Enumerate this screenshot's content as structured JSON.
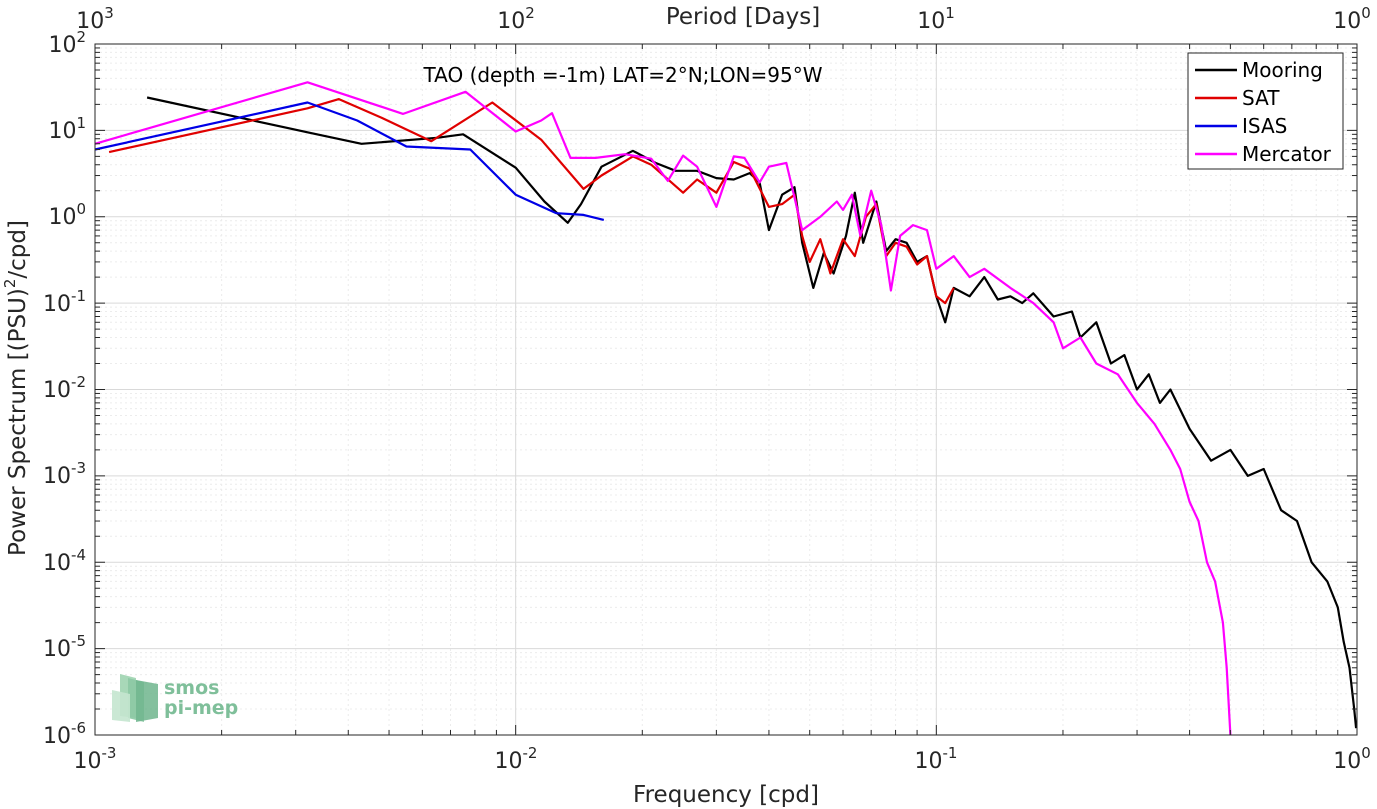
{
  "chart_data": {
    "type": "line",
    "title": "TAO (depth =-1m) LAT=2°N;LON=95°W",
    "xlabel": "Frequency [cpd]",
    "ylabel": "Power Spectrum [(PSU)",
    "ylabel_sup": "2",
    "ylabel_tail": "/cpd]",
    "top_xlabel": "Period [Days]",
    "xscale": "log",
    "yscale": "log",
    "xlim": [
      0.001,
      1
    ],
    "ylim": [
      1e-06,
      100
    ],
    "grid": true,
    "legend_position": "top-right",
    "x_ticks": [
      {
        "base": "10",
        "exp": "-3",
        "value": 0.001
      },
      {
        "base": "10",
        "exp": "-2",
        "value": 0.01
      },
      {
        "base": "10",
        "exp": "-1",
        "value": 0.1
      },
      {
        "base": "10",
        "exp": "0",
        "value": 1
      }
    ],
    "y_ticks": [
      {
        "base": "10",
        "exp": "2",
        "value": 100
      },
      {
        "base": "10",
        "exp": "1",
        "value": 10
      },
      {
        "base": "10",
        "exp": "0",
        "value": 1
      },
      {
        "base": "10",
        "exp": "-1",
        "value": 0.1
      },
      {
        "base": "10",
        "exp": "-2",
        "value": 0.01
      },
      {
        "base": "10",
        "exp": "-3",
        "value": 0.001
      },
      {
        "base": "10",
        "exp": "-4",
        "value": 0.0001
      },
      {
        "base": "10",
        "exp": "-5",
        "value": 1e-05
      },
      {
        "base": "10",
        "exp": "-6",
        "value": 1e-06
      }
    ],
    "top_ticks": [
      {
        "base": "10",
        "exp": "3",
        "period": 1000
      },
      {
        "base": "10",
        "exp": "2",
        "period": 100
      },
      {
        "base": "10",
        "exp": "1",
        "period": 10
      },
      {
        "base": "10",
        "exp": "0",
        "period": 1
      }
    ],
    "series": [
      {
        "name": "Mooring",
        "color": "#000000",
        "points": [
          [
            0.00133,
            24
          ],
          [
            0.0032,
            9.5
          ],
          [
            0.0043,
            7
          ],
          [
            0.0065,
            8.2
          ],
          [
            0.0075,
            9
          ],
          [
            0.01,
            3.7
          ],
          [
            0.0117,
            1.5
          ],
          [
            0.0133,
            0.85
          ],
          [
            0.0143,
            1.4
          ],
          [
            0.016,
            3.8
          ],
          [
            0.019,
            5.8
          ],
          [
            0.0215,
            4.2
          ],
          [
            0.024,
            3.4
          ],
          [
            0.027,
            3.4
          ],
          [
            0.03,
            2.8
          ],
          [
            0.033,
            2.7
          ],
          [
            0.036,
            3.2
          ],
          [
            0.038,
            2.5
          ],
          [
            0.04,
            0.7
          ],
          [
            0.043,
            1.8
          ],
          [
            0.046,
            2.2
          ],
          [
            0.048,
            0.5
          ],
          [
            0.051,
            0.15
          ],
          [
            0.054,
            0.38
          ],
          [
            0.057,
            0.22
          ],
          [
            0.061,
            0.6
          ],
          [
            0.064,
            1.9
          ],
          [
            0.067,
            0.5
          ],
          [
            0.072,
            1.5
          ],
          [
            0.076,
            0.4
          ],
          [
            0.08,
            0.55
          ],
          [
            0.085,
            0.5
          ],
          [
            0.09,
            0.3
          ],
          [
            0.095,
            0.35
          ],
          [
            0.1,
            0.12
          ],
          [
            0.105,
            0.06
          ],
          [
            0.11,
            0.15
          ],
          [
            0.12,
            0.12
          ],
          [
            0.13,
            0.2
          ],
          [
            0.14,
            0.11
          ],
          [
            0.15,
            0.12
          ],
          [
            0.16,
            0.1
          ],
          [
            0.17,
            0.13
          ],
          [
            0.19,
            0.07
          ],
          [
            0.21,
            0.08
          ],
          [
            0.22,
            0.04
          ],
          [
            0.24,
            0.06
          ],
          [
            0.26,
            0.02
          ],
          [
            0.28,
            0.025
          ],
          [
            0.3,
            0.01
          ],
          [
            0.32,
            0.015
          ],
          [
            0.34,
            0.007
          ],
          [
            0.36,
            0.01
          ],
          [
            0.4,
            0.0035
          ],
          [
            0.45,
            0.0015
          ],
          [
            0.5,
            0.002
          ],
          [
            0.55,
            0.001
          ],
          [
            0.6,
            0.0012
          ],
          [
            0.66,
            0.0004
          ],
          [
            0.72,
            0.0003
          ],
          [
            0.78,
            0.0001
          ],
          [
            0.85,
            6e-05
          ],
          [
            0.9,
            3e-05
          ],
          [
            0.93,
            1.2e-05
          ],
          [
            0.96,
            6e-06
          ],
          [
            0.985,
            2e-06
          ],
          [
            0.995,
            1.2e-06
          ]
        ]
      },
      {
        "name": "SAT",
        "color": "#e00000",
        "points": [
          [
            0.00108,
            5.6
          ],
          [
            0.0032,
            18
          ],
          [
            0.0038,
            23
          ],
          [
            0.0048,
            14
          ],
          [
            0.0063,
            7.5
          ],
          [
            0.0088,
            21
          ],
          [
            0.0115,
            7.8
          ],
          [
            0.0145,
            2.1
          ],
          [
            0.016,
            3
          ],
          [
            0.019,
            5
          ],
          [
            0.021,
            4
          ],
          [
            0.025,
            1.9
          ],
          [
            0.027,
            2.7
          ],
          [
            0.03,
            1.9
          ],
          [
            0.033,
            4.3
          ],
          [
            0.036,
            3.6
          ],
          [
            0.04,
            1.3
          ],
          [
            0.043,
            1.4
          ],
          [
            0.046,
            1.8
          ],
          [
            0.048,
            0.6
          ],
          [
            0.05,
            0.3
          ],
          [
            0.053,
            0.55
          ],
          [
            0.056,
            0.22
          ],
          [
            0.06,
            0.55
          ],
          [
            0.064,
            0.35
          ],
          [
            0.068,
            1
          ],
          [
            0.072,
            1.4
          ],
          [
            0.076,
            0.35
          ],
          [
            0.08,
            0.5
          ],
          [
            0.085,
            0.45
          ],
          [
            0.09,
            0.28
          ],
          [
            0.095,
            0.35
          ],
          [
            0.1,
            0.12
          ],
          [
            0.105,
            0.1
          ],
          [
            0.11,
            0.15
          ]
        ]
      },
      {
        "name": "ISAS",
        "color": "#0000e6",
        "points": [
          [
            0.001,
            6
          ],
          [
            0.0032,
            21
          ],
          [
            0.0042,
            13
          ],
          [
            0.0055,
            6.5
          ],
          [
            0.0078,
            6
          ],
          [
            0.01,
            1.8
          ],
          [
            0.0125,
            1.1
          ],
          [
            0.0145,
            1.05
          ],
          [
            0.0162,
            0.92
          ]
        ]
      },
      {
        "name": "Mercator",
        "color": "#ff00ff",
        "points": [
          [
            0.001,
            7
          ],
          [
            0.0032,
            36
          ],
          [
            0.0054,
            15.5
          ],
          [
            0.0076,
            28
          ],
          [
            0.01,
            9.7
          ],
          [
            0.0115,
            13
          ],
          [
            0.0122,
            15.8
          ],
          [
            0.0135,
            4.8
          ],
          [
            0.0155,
            4.8
          ],
          [
            0.0182,
            5.3
          ],
          [
            0.021,
            4.7
          ],
          [
            0.023,
            2.6
          ],
          [
            0.025,
            5.1
          ],
          [
            0.027,
            3.8
          ],
          [
            0.03,
            1.3
          ],
          [
            0.033,
            5
          ],
          [
            0.035,
            4.8
          ],
          [
            0.038,
            2.5
          ],
          [
            0.04,
            3.8
          ],
          [
            0.044,
            4.2
          ],
          [
            0.048,
            0.7
          ],
          [
            0.053,
            1
          ],
          [
            0.058,
            1.5
          ],
          [
            0.06,
            1.2
          ],
          [
            0.063,
            1.8
          ],
          [
            0.066,
            0.6
          ],
          [
            0.07,
            2
          ],
          [
            0.074,
            0.8
          ],
          [
            0.078,
            0.14
          ],
          [
            0.082,
            0.6
          ],
          [
            0.088,
            0.8
          ],
          [
            0.095,
            0.7
          ],
          [
            0.1,
            0.25
          ],
          [
            0.11,
            0.35
          ],
          [
            0.12,
            0.2
          ],
          [
            0.13,
            0.25
          ],
          [
            0.15,
            0.15
          ],
          [
            0.17,
            0.1
          ],
          [
            0.19,
            0.06
          ],
          [
            0.2,
            0.03
          ],
          [
            0.22,
            0.04
          ],
          [
            0.24,
            0.02
          ],
          [
            0.27,
            0.015
          ],
          [
            0.3,
            0.007
          ],
          [
            0.33,
            0.004
          ],
          [
            0.36,
            0.002
          ],
          [
            0.38,
            0.0012
          ],
          [
            0.4,
            0.0005
          ],
          [
            0.42,
            0.0003
          ],
          [
            0.44,
            0.0001
          ],
          [
            0.46,
            6e-05
          ],
          [
            0.48,
            2e-05
          ],
          [
            0.49,
            6e-06
          ],
          [
            0.5,
            1e-06
          ]
        ]
      }
    ]
  },
  "logo": {
    "line1": "smos",
    "line2": "pi-mep",
    "color": "#7fbf9a"
  }
}
